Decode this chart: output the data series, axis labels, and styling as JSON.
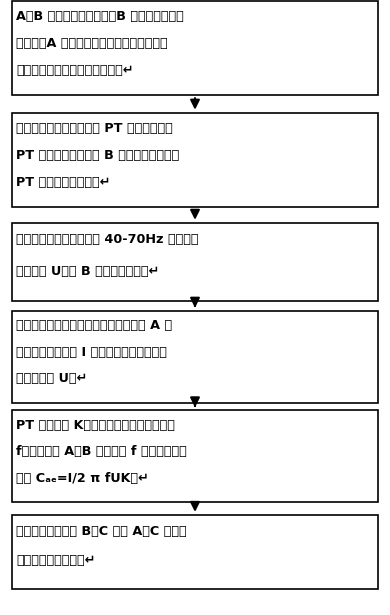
{
  "boxes": [
    {
      "lines": [
        "A、B 相避雷器上端悬空，B 相避雷器下端直",
        "接接地，A 避雷器下端也直接接地，并在其",
        "接地线上接入一弱电流互感器。↵"
      ]
    },
    {
      "lines": [
        "变频信号源输出端接高压 PT 的低压端子，",
        "PT 的高压输出端子接 B 相避雷器的上端，",
        "PT 的外壳直接接地。↵"
      ]
    },
    {
      "lines": [
        "使用变频信号源输出一个 40-70Hz 间的异频",
        "电压信号 U，对 B 相避雷器加压。↵"
      ]
    },
    {
      "lines": [
        "使用高精度强抗干扰选频测量装置测量 A 相",
        "避雷器的异频电流 I 和变频信号源输出的异",
        "频电压信号 U。↵"
      ]
    },
    {
      "lines": [
        "PT 的变比为 K，测试用的异频信号频率为",
        "f，可计算出 A、B 相在频率 f 下的相间耦合",
        "电容 Cₐₑ=I/2 π fUK。↵"
      ]
    },
    {
      "lines": [
        "同理可分别测量出 B、C 相和 A、C 相避雷",
        "器的相间耦合电容。↵"
      ]
    }
  ],
  "arrow_color": "#000000",
  "box_facecolor": "#ffffff",
  "box_edgecolor": "#000000",
  "background_color": "#ffffff",
  "fig_width": 3.9,
  "fig_height": 6.15
}
